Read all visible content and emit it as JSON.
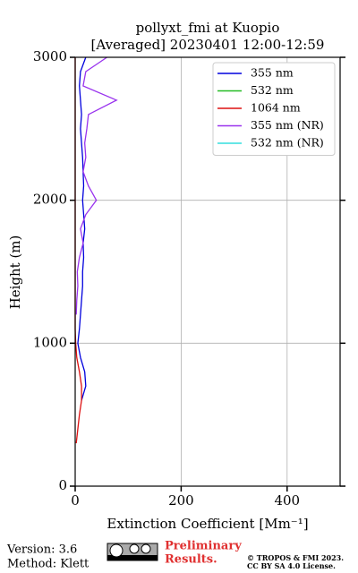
{
  "chart_data": {
    "type": "line",
    "title": "pollyxt_fmi at Kuopio",
    "subtitle": "[Averaged] 20230401 12:00-12:59",
    "xlabel": "Extinction Coefficient [Mm⁻¹]",
    "ylabel": "Height (m)",
    "y": [
      0,
      100,
      200,
      300,
      400,
      500,
      600,
      700,
      800,
      900,
      1000,
      1100,
      1200,
      1300,
      1400,
      1500,
      1600,
      1700,
      1800,
      1900,
      2000,
      2100,
      2200,
      2300,
      2400,
      2500,
      2600,
      2700,
      2800,
      2900,
      3000
    ],
    "series": [
      {
        "name": "355 nm",
        "color": "#0000dd",
        "values": [
          null,
          null,
          null,
          null,
          null,
          null,
          12,
          20,
          18,
          10,
          5,
          8,
          10,
          12,
          14,
          14,
          16,
          15,
          18,
          16,
          14,
          16,
          15,
          14,
          12,
          10,
          12,
          10,
          8,
          10,
          20
        ]
      },
      {
        "name": "532 nm",
        "color": "#22bb22",
        "values": [
          null,
          null,
          null,
          null,
          null,
          null,
          null,
          null,
          null,
          null,
          null,
          null,
          null,
          null,
          null,
          null,
          null,
          null,
          null,
          null,
          null,
          null,
          null,
          null,
          null,
          null,
          null,
          null,
          null,
          null,
          null
        ]
      },
      {
        "name": "1064 nm",
        "color": "#dd1111",
        "values": [
          null,
          null,
          null,
          2,
          5,
          8,
          12,
          12,
          8,
          3,
          1,
          0,
          0,
          0,
          0,
          0,
          0,
          0,
          0,
          0,
          0,
          0,
          0,
          0,
          0,
          0,
          0,
          0,
          0,
          0,
          0
        ]
      },
      {
        "name": "355 nm (NR)",
        "color": "#9933ee",
        "values": [
          null,
          null,
          null,
          null,
          null,
          null,
          null,
          12,
          null,
          null,
          null,
          null,
          2,
          3,
          5,
          4,
          8,
          15,
          10,
          20,
          40,
          25,
          15,
          20,
          18,
          22,
          25,
          78,
          15,
          20,
          60
        ]
      },
      {
        "name": "532 nm (NR)",
        "color": "#33dddd",
        "values": [
          null,
          null,
          null,
          null,
          null,
          null,
          null,
          null,
          null,
          null,
          null,
          null,
          null,
          null,
          null,
          null,
          null,
          null,
          null,
          null,
          null,
          null,
          null,
          null,
          null,
          null,
          null,
          null,
          null,
          null,
          null
        ]
      }
    ],
    "xlim": [
      0,
      500
    ],
    "xticks": [
      0,
      200,
      400
    ],
    "ylim": [
      0,
      3000
    ],
    "yticks": [
      0,
      1000,
      2000,
      3000
    ],
    "grid": true,
    "legend": "upper right"
  },
  "footer": {
    "version": "Version: 3.6",
    "method": "Method: Klett",
    "preliminary": "Preliminary",
    "results": "Results.",
    "copyright": "© TROPOS & FMI 2023.",
    "license": "CC BY SA 4.0 License."
  }
}
